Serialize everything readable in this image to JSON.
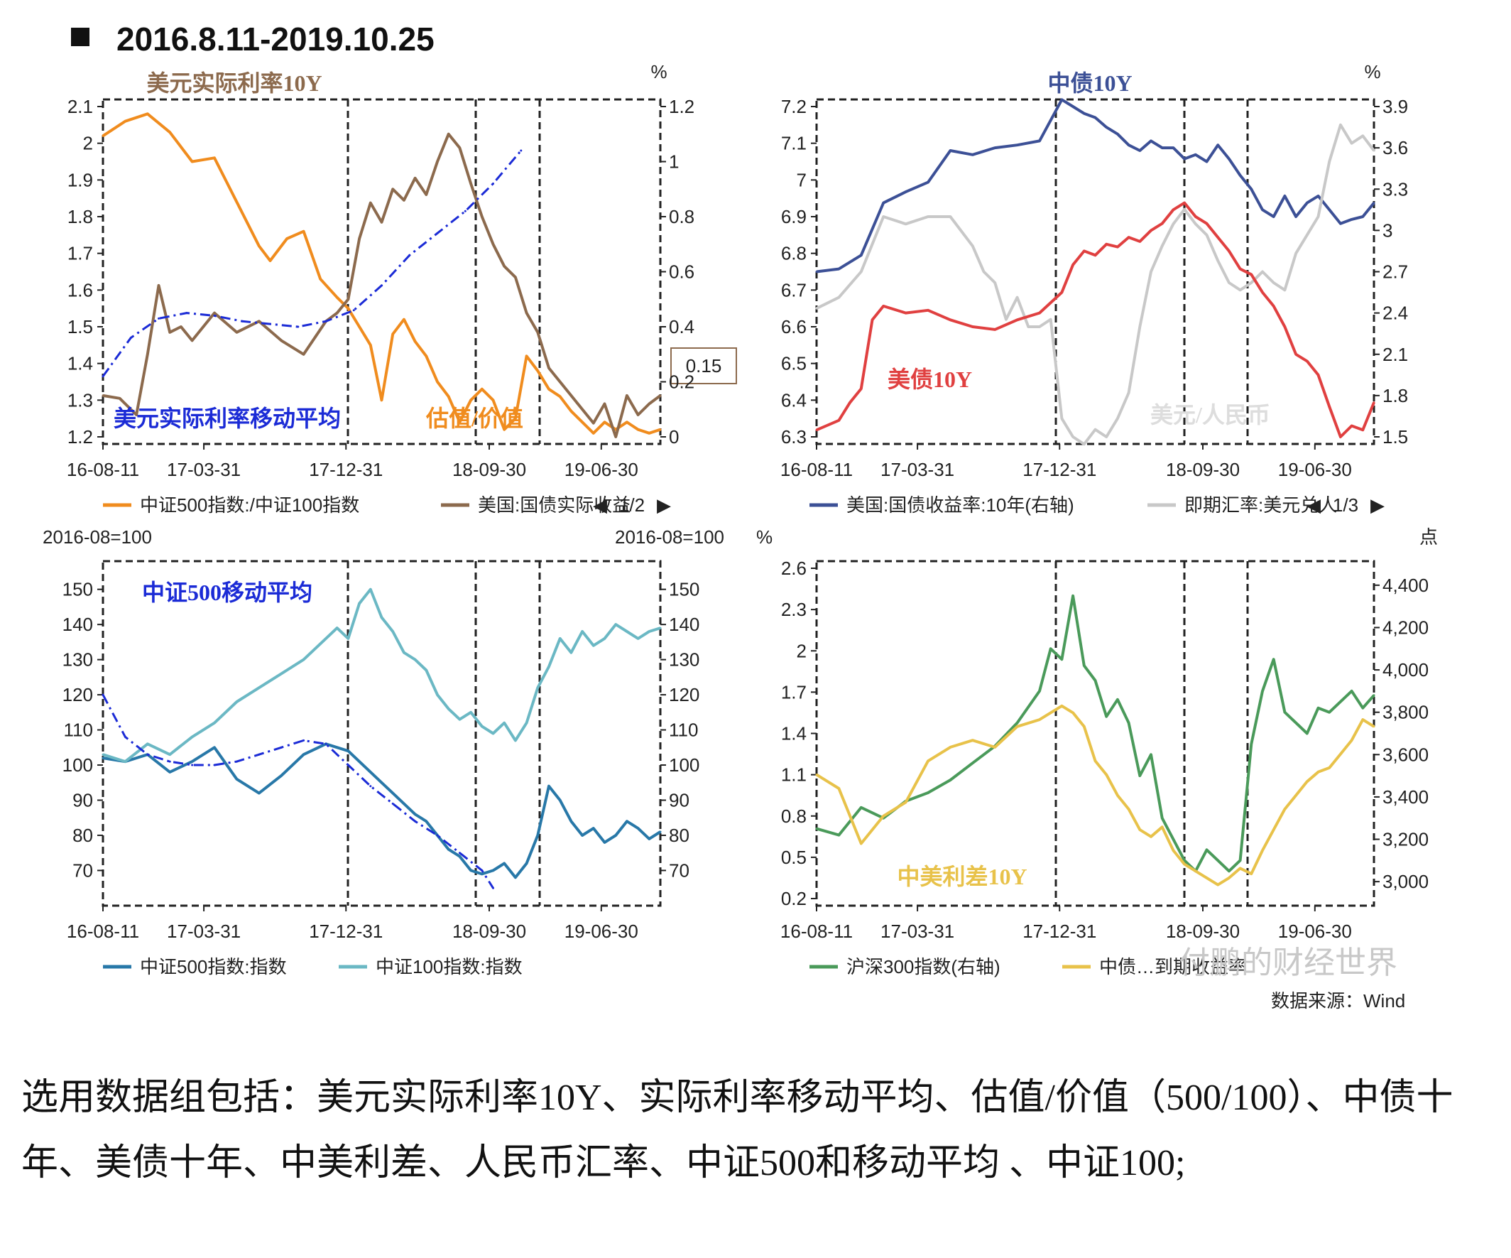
{
  "page": {
    "title": "2016.8.11-2019.10.25",
    "caption": "选用数据组包括：美元实际利率10Y、实际利率移动平均、估值/价值（500/100）、中债十年、美债十年、中美利差、人民币汇率、中证500和移动平均 、中证100;",
    "watermark": "付鹏的财经世界",
    "source": "数据来源：Wind"
  },
  "chart_data": [
    {
      "type": "line",
      "panel": "top-left",
      "title": "美元实际利率10Y",
      "x_ticks": [
        "16-08-11",
        "17-03-31",
        "17-12-31",
        "18-09-30",
        "19-06-30"
      ],
      "y_left_ticks": [
        "1.2",
        "1.3",
        "1.4",
        "1.5",
        "1.6",
        "1.7",
        "1.8",
        "1.9",
        "2",
        "2.1"
      ],
      "y_left_lim": [
        1.2,
        2.1
      ],
      "y_right_unit": "%",
      "y_right_ticks": [
        "0",
        "0.2",
        "0.4",
        "0.6",
        "0.8",
        "1",
        "1.2"
      ],
      "y_right_lim": [
        0,
        1.2
      ],
      "tooltip_value": "0.15",
      "annotations": [
        "美元实际利率移动平均",
        "估值/价值"
      ],
      "legend": [
        "中证500指数:/中证100指数",
        "美国:国债实际收益"
      ],
      "legend_page": "1/2",
      "series": [
        {
          "name": "中证500指数:/中证100指数",
          "axis": "left",
          "color": "#f08c1e",
          "x": [
            0,
            0.04,
            0.08,
            0.12,
            0.16,
            0.2,
            0.24,
            0.28,
            0.3,
            0.33,
            0.36,
            0.39,
            0.42,
            0.44,
            0.46,
            0.48,
            0.5,
            0.52,
            0.54,
            0.56,
            0.58,
            0.6,
            0.62,
            0.64,
            0.66,
            0.68,
            0.7,
            0.72,
            0.74,
            0.76,
            0.78,
            0.8,
            0.82,
            0.84,
            0.86,
            0.88,
            0.9,
            0.92,
            0.94,
            0.96,
            0.98,
            1.0
          ],
          "values": [
            2.02,
            2.06,
            2.08,
            2.03,
            1.95,
            1.96,
            1.84,
            1.72,
            1.68,
            1.74,
            1.76,
            1.63,
            1.58,
            1.55,
            1.5,
            1.45,
            1.3,
            1.48,
            1.52,
            1.46,
            1.42,
            1.35,
            1.31,
            1.24,
            1.3,
            1.33,
            1.3,
            1.22,
            1.25,
            1.42,
            1.38,
            1.33,
            1.31,
            1.27,
            1.24,
            1.21,
            1.24,
            1.22,
            1.24,
            1.22,
            1.21,
            1.22
          ]
        },
        {
          "name": "美国:国债实际收益",
          "axis": "right",
          "color": "#8c6a4d",
          "x": [
            0,
            0.03,
            0.06,
            0.08,
            0.1,
            0.12,
            0.14,
            0.16,
            0.2,
            0.24,
            0.28,
            0.32,
            0.36,
            0.4,
            0.42,
            0.44,
            0.46,
            0.48,
            0.5,
            0.52,
            0.54,
            0.56,
            0.58,
            0.6,
            0.62,
            0.64,
            0.66,
            0.68,
            0.7,
            0.72,
            0.74,
            0.76,
            0.78,
            0.8,
            0.82,
            0.84,
            0.86,
            0.88,
            0.9,
            0.92,
            0.94,
            0.96,
            0.98,
            1.0
          ],
          "values": [
            0.15,
            0.14,
            0.08,
            0.3,
            0.55,
            0.38,
            0.4,
            0.35,
            0.45,
            0.38,
            0.42,
            0.35,
            0.3,
            0.42,
            0.45,
            0.5,
            0.72,
            0.85,
            0.78,
            0.9,
            0.86,
            0.94,
            0.88,
            1.0,
            1.1,
            1.05,
            0.92,
            0.8,
            0.7,
            0.62,
            0.58,
            0.45,
            0.38,
            0.25,
            0.2,
            0.15,
            0.1,
            0.05,
            0.12,
            0.0,
            0.15,
            0.08,
            0.12,
            0.15
          ]
        },
        {
          "name": "",
          "axis": "right",
          "color": "#1b2bd6",
          "style": "dash-dot",
          "x": [
            0,
            0.05,
            0.1,
            0.15,
            0.2,
            0.25,
            0.3,
            0.35,
            0.4,
            0.45,
            0.5,
            0.55,
            0.6,
            0.65,
            0.7,
            0.75
          ],
          "values": [
            0.22,
            0.36,
            0.43,
            0.45,
            0.44,
            0.42,
            0.41,
            0.4,
            0.42,
            0.46,
            0.55,
            0.66,
            0.74,
            0.82,
            0.92,
            1.04
          ]
        }
      ]
    },
    {
      "type": "line",
      "panel": "top-right",
      "title": "中债10Y",
      "x_ticks": [
        "16-08-11",
        "17-03-31",
        "17-12-31",
        "18-09-30",
        "19-06-30"
      ],
      "y_left_ticks": [
        "6.3",
        "6.4",
        "6.5",
        "6.6",
        "6.7",
        "6.8",
        "6.9",
        "7",
        "7.1",
        "7.2"
      ],
      "y_left_lim": [
        6.3,
        7.2
      ],
      "y_right_unit": "%",
      "y_right_ticks": [
        "1.5",
        "1.8",
        "2.1",
        "2.4",
        "2.7",
        "3",
        "3.3",
        "3.6",
        "3.9"
      ],
      "y_right_lim": [
        1.5,
        3.9
      ],
      "annotations": [
        "美债10Y",
        "美元/人民币"
      ],
      "legend": [
        "美国:国债收益率:10年(右轴)",
        "即期汇率:美元兑人"
      ],
      "legend_page": "1/3",
      "series": [
        {
          "name": "中债10Y",
          "axis": "right",
          "color": "#3c5096",
          "x": [
            0,
            0.04,
            0.08,
            0.12,
            0.16,
            0.2,
            0.24,
            0.28,
            0.32,
            0.36,
            0.4,
            0.44,
            0.46,
            0.48,
            0.5,
            0.52,
            0.54,
            0.56,
            0.58,
            0.6,
            0.62,
            0.64,
            0.66,
            0.68,
            0.7,
            0.72,
            0.74,
            0.76,
            0.78,
            0.8,
            0.82,
            0.84,
            0.86,
            0.88,
            0.9,
            0.92,
            0.94,
            0.96,
            0.98,
            1.0
          ],
          "values": [
            2.7,
            2.72,
            2.82,
            3.2,
            3.28,
            3.35,
            3.58,
            3.55,
            3.6,
            3.62,
            3.65,
            3.95,
            3.9,
            3.85,
            3.82,
            3.75,
            3.7,
            3.62,
            3.58,
            3.65,
            3.6,
            3.6,
            3.52,
            3.55,
            3.5,
            3.62,
            3.52,
            3.4,
            3.3,
            3.15,
            3.1,
            3.25,
            3.1,
            3.2,
            3.25,
            3.15,
            3.05,
            3.08,
            3.1,
            3.2
          ]
        },
        {
          "name": "即期汇率:美元兑人",
          "axis": "left",
          "color": "#c8c8c8",
          "x": [
            0,
            0.04,
            0.08,
            0.12,
            0.16,
            0.2,
            0.24,
            0.28,
            0.3,
            0.32,
            0.34,
            0.36,
            0.38,
            0.4,
            0.42,
            0.44,
            0.46,
            0.48,
            0.5,
            0.52,
            0.54,
            0.56,
            0.58,
            0.6,
            0.62,
            0.64,
            0.66,
            0.68,
            0.7,
            0.72,
            0.74,
            0.76,
            0.78,
            0.8,
            0.82,
            0.84,
            0.86,
            0.88,
            0.9,
            0.92,
            0.94,
            0.96,
            0.98,
            1.0
          ],
          "values": [
            6.65,
            6.68,
            6.75,
            6.9,
            6.88,
            6.9,
            6.9,
            6.82,
            6.75,
            6.72,
            6.62,
            6.68,
            6.6,
            6.6,
            6.62,
            6.35,
            6.3,
            6.28,
            6.32,
            6.3,
            6.35,
            6.42,
            6.6,
            6.75,
            6.82,
            6.88,
            6.92,
            6.88,
            6.85,
            6.78,
            6.72,
            6.7,
            6.72,
            6.75,
            6.72,
            6.7,
            6.8,
            6.85,
            6.9,
            7.05,
            7.15,
            7.1,
            7.12,
            7.08
          ]
        },
        {
          "name": "美国:国债收益率:10年(右轴)",
          "axis": "right",
          "color": "#e04040",
          "x": [
            0,
            0.04,
            0.06,
            0.08,
            0.1,
            0.12,
            0.16,
            0.2,
            0.24,
            0.28,
            0.32,
            0.36,
            0.4,
            0.44,
            0.46,
            0.48,
            0.5,
            0.52,
            0.54,
            0.56,
            0.58,
            0.6,
            0.62,
            0.64,
            0.66,
            0.68,
            0.7,
            0.72,
            0.74,
            0.76,
            0.78,
            0.8,
            0.82,
            0.84,
            0.86,
            0.88,
            0.9,
            0.92,
            0.94,
            0.96,
            0.98,
            1.0
          ],
          "values": [
            1.55,
            1.62,
            1.75,
            1.85,
            2.35,
            2.45,
            2.4,
            2.42,
            2.35,
            2.3,
            2.28,
            2.35,
            2.4,
            2.55,
            2.75,
            2.85,
            2.82,
            2.9,
            2.88,
            2.95,
            2.92,
            3.0,
            3.05,
            3.15,
            3.2,
            3.1,
            3.05,
            2.95,
            2.85,
            2.72,
            2.68,
            2.55,
            2.45,
            2.3,
            2.1,
            2.05,
            1.95,
            1.72,
            1.5,
            1.58,
            1.55,
            1.75
          ]
        }
      ]
    },
    {
      "type": "line",
      "panel": "bottom-left",
      "title": "中证500移动平均",
      "unit_left": "2016-08=100",
      "unit_right": "2016-08=100",
      "x_ticks": [
        "16-08-11",
        "17-03-31",
        "17-12-31",
        "18-09-30",
        "19-06-30"
      ],
      "y_left_ticks": [
        "70",
        "80",
        "90",
        "100",
        "110",
        "120",
        "130",
        "140",
        "150"
      ],
      "y_right_ticks": [
        "70",
        "80",
        "90",
        "100",
        "110",
        "120",
        "130",
        "140",
        "150"
      ],
      "y_lim": [
        62,
        156
      ],
      "legend": [
        "中证500指数:指数",
        "中证100指数:指数"
      ],
      "series": [
        {
          "name": "中证500指数:指数",
          "color": "#2878a8",
          "x": [
            0,
            0.04,
            0.08,
            0.12,
            0.16,
            0.2,
            0.24,
            0.28,
            0.32,
            0.36,
            0.4,
            0.44,
            0.46,
            0.48,
            0.5,
            0.52,
            0.54,
            0.56,
            0.58,
            0.6,
            0.62,
            0.64,
            0.66,
            0.68,
            0.7,
            0.72,
            0.74,
            0.76,
            0.78,
            0.8,
            0.82,
            0.84,
            0.86,
            0.88,
            0.9,
            0.92,
            0.94,
            0.96,
            0.98,
            1.0
          ],
          "values": [
            102,
            101,
            103,
            98,
            101,
            105,
            96,
            92,
            97,
            103,
            106,
            104,
            101,
            98,
            95,
            92,
            89,
            86,
            84,
            80,
            76,
            74,
            70,
            69,
            70,
            72,
            68,
            72,
            80,
            94,
            90,
            84,
            80,
            82,
            78,
            80,
            84,
            82,
            79,
            81
          ]
        },
        {
          "name": "中证100指数:指数",
          "color": "#6bb8c4",
          "x": [
            0,
            0.04,
            0.08,
            0.12,
            0.16,
            0.2,
            0.24,
            0.28,
            0.32,
            0.36,
            0.4,
            0.42,
            0.44,
            0.46,
            0.48,
            0.5,
            0.52,
            0.54,
            0.56,
            0.58,
            0.6,
            0.62,
            0.64,
            0.66,
            0.68,
            0.7,
            0.72,
            0.74,
            0.76,
            0.78,
            0.8,
            0.82,
            0.84,
            0.86,
            0.88,
            0.9,
            0.92,
            0.94,
            0.96,
            0.98,
            1.0
          ],
          "values": [
            103,
            101,
            106,
            103,
            108,
            112,
            118,
            122,
            126,
            130,
            136,
            139,
            136,
            146,
            150,
            142,
            138,
            132,
            130,
            127,
            120,
            116,
            113,
            115,
            111,
            109,
            112,
            107,
            112,
            122,
            128,
            136,
            132,
            138,
            134,
            136,
            140,
            138,
            136,
            138,
            139
          ]
        },
        {
          "name": "",
          "color": "#1b2bd6",
          "style": "dash-dot",
          "x": [
            0,
            0.04,
            0.08,
            0.12,
            0.16,
            0.2,
            0.24,
            0.28,
            0.32,
            0.36,
            0.4,
            0.44,
            0.48,
            0.52,
            0.56,
            0.6,
            0.64,
            0.68,
            0.7
          ],
          "values": [
            120,
            108,
            103,
            101,
            100,
            100,
            101,
            103,
            105,
            107,
            106,
            100,
            94,
            89,
            84,
            80,
            75,
            70,
            65
          ]
        }
      ]
    },
    {
      "type": "line",
      "panel": "bottom-right",
      "title": "中美利差10Y",
      "unit_left": "%",
      "unit_right": "点",
      "x_ticks": [
        "16-08-11",
        "17-03-31",
        "17-12-31",
        "18-09-30",
        "19-06-30"
      ],
      "y_left_ticks": [
        "0.2",
        "0.5",
        "0.8",
        "1.1",
        "1.4",
        "1.7",
        "2",
        "2.3",
        "2.6"
      ],
      "y_left_lim": [
        0.2,
        2.6
      ],
      "y_right_ticks": [
        "3,000",
        "3,200",
        "3,400",
        "3,600",
        "3,800",
        "4,000",
        "4,200",
        "4,400"
      ],
      "y_right_lim": [
        2920,
        4480
      ],
      "legend": [
        "沪深300指数(右轴)",
        "中债…到期收益率"
      ],
      "series": [
        {
          "name": "沪深300指数(右轴)",
          "axis": "right",
          "color": "#4a9a5a",
          "x": [
            0,
            0.04,
            0.08,
            0.12,
            0.16,
            0.2,
            0.24,
            0.28,
            0.32,
            0.36,
            0.4,
            0.42,
            0.44,
            0.46,
            0.48,
            0.5,
            0.52,
            0.54,
            0.56,
            0.58,
            0.6,
            0.62,
            0.64,
            0.66,
            0.68,
            0.7,
            0.72,
            0.74,
            0.76,
            0.78,
            0.8,
            0.82,
            0.84,
            0.86,
            0.88,
            0.9,
            0.92,
            0.94,
            0.96,
            0.98,
            1.0
          ],
          "values": [
            3250,
            3220,
            3350,
            3300,
            3380,
            3420,
            3480,
            3560,
            3640,
            3750,
            3900,
            4100,
            4050,
            4350,
            4020,
            3950,
            3780,
            3860,
            3750,
            3500,
            3600,
            3300,
            3200,
            3100,
            3050,
            3150,
            3100,
            3050,
            3100,
            3650,
            3900,
            4050,
            3800,
            3750,
            3700,
            3820,
            3800,
            3850,
            3900,
            3820,
            3880
          ]
        },
        {
          "name": "中债…到期收益率",
          "axis": "left",
          "color": "#e8c24a",
          "x": [
            0,
            0.04,
            0.08,
            0.12,
            0.16,
            0.2,
            0.24,
            0.28,
            0.32,
            0.36,
            0.4,
            0.44,
            0.46,
            0.48,
            0.5,
            0.52,
            0.54,
            0.56,
            0.58,
            0.6,
            0.62,
            0.64,
            0.66,
            0.68,
            0.7,
            0.72,
            0.74,
            0.76,
            0.78,
            0.8,
            0.82,
            0.84,
            0.86,
            0.88,
            0.9,
            0.92,
            0.94,
            0.96,
            0.98,
            1.0
          ],
          "values": [
            1.1,
            1.0,
            0.6,
            0.8,
            0.9,
            1.2,
            1.3,
            1.35,
            1.3,
            1.45,
            1.5,
            1.6,
            1.55,
            1.45,
            1.2,
            1.1,
            0.95,
            0.85,
            0.7,
            0.65,
            0.72,
            0.55,
            0.45,
            0.4,
            0.35,
            0.3,
            0.35,
            0.42,
            0.38,
            0.55,
            0.7,
            0.85,
            0.95,
            1.05,
            1.12,
            1.15,
            1.25,
            1.35,
            1.5,
            1.45
          ]
        }
      ]
    }
  ]
}
